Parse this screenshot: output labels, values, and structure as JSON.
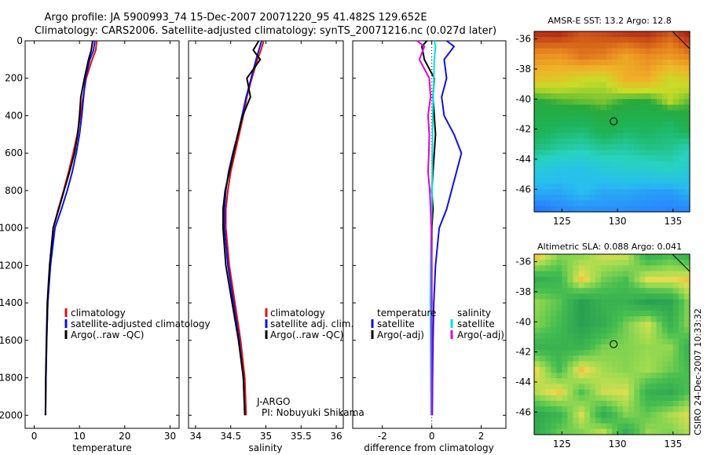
{
  "title_line1": "Argo profile: JA 5900993_74 15-Dec-2007 20071220_95 41.482S 129.652E",
  "title_line2": "Climatology: CARS2006. Satellite-adjusted climatology: synTS_20071216.nc (0.027d later)",
  "credit": "CSIRO 24-Dec-2007 10:33:32",
  "chart_data": [
    {
      "type": "line",
      "xlabel": "temperature",
      "xlim": [
        -2,
        32
      ],
      "ylim": [
        2070,
        0
      ],
      "yticks": [
        0,
        200,
        400,
        600,
        800,
        1000,
        1200,
        1400,
        1600,
        1800,
        2000
      ],
      "xticks": [
        0,
        10,
        20,
        30
      ],
      "legend": [
        "climatology",
        "satellite-adjusted climatology",
        "Argo(..raw -QC)"
      ],
      "series": [
        {
          "name": "climatology",
          "color": "#e01010",
          "x": [
            13.8,
            13.6,
            12.8,
            11.5,
            10.8,
            10.2,
            9.5,
            8.6,
            7.6,
            6.5,
            5.3,
            4.2,
            3.5,
            3.0,
            2.75,
            2.6,
            2.5
          ],
          "y": [
            0,
            50,
            100,
            200,
            300,
            400,
            500,
            600,
            700,
            800,
            900,
            1000,
            1200,
            1400,
            1600,
            1800,
            2000
          ]
        },
        {
          "name": "satellite-adjusted climatology",
          "color": "#1010e0",
          "x": [
            13.4,
            13.1,
            12.3,
            11.3,
            10.9,
            10.5,
            10.0,
            9.3,
            8.4,
            7.3,
            6.0,
            4.6,
            3.6,
            3.0,
            2.75,
            2.6,
            2.5
          ],
          "y": [
            0,
            50,
            100,
            200,
            300,
            400,
            500,
            600,
            700,
            800,
            900,
            1000,
            1200,
            1400,
            1600,
            1800,
            2000
          ]
        },
        {
          "name": "Argo(..raw -QC)",
          "color": "#000000",
          "x": [
            12.9,
            12.6,
            12.0,
            11.1,
            10.3,
            10.0,
            9.6,
            8.9,
            7.8,
            6.6,
            5.4,
            4.2,
            3.4,
            2.9,
            2.7,
            2.55,
            2.5
          ],
          "y": [
            0,
            50,
            100,
            200,
            300,
            400,
            500,
            600,
            700,
            800,
            900,
            1000,
            1200,
            1400,
            1600,
            1800,
            2000
          ]
        }
      ]
    },
    {
      "type": "line",
      "xlabel": "salinity",
      "xlim": [
        33.9,
        36.1
      ],
      "ylim": [
        2070,
        0
      ],
      "xticks": [
        34,
        34.5,
        35,
        35.5,
        36
      ],
      "legend": [
        "climatology",
        "satellite adj. clim.",
        "Argo(..raw -QC)"
      ],
      "annotation": [
        "J-ARGO",
        "PI: Nobuyuki Shikama"
      ],
      "series": [
        {
          "name": "climatology",
          "color": "#e01010",
          "x": [
            34.97,
            34.93,
            34.88,
            34.8,
            34.73,
            34.68,
            34.62,
            34.56,
            34.5,
            34.46,
            34.43,
            34.43,
            34.48,
            34.56,
            34.64,
            34.7,
            34.72
          ],
          "y": [
            0,
            50,
            100,
            200,
            300,
            400,
            500,
            600,
            700,
            800,
            900,
            1000,
            1200,
            1400,
            1600,
            1800,
            2000
          ]
        },
        {
          "name": "satellite adj. clim.",
          "color": "#1010e0",
          "x": [
            34.94,
            34.9,
            34.86,
            34.79,
            34.72,
            34.66,
            34.6,
            34.53,
            34.47,
            34.43,
            34.41,
            34.41,
            34.46,
            34.54,
            34.62,
            34.68,
            34.7
          ],
          "y": [
            0,
            50,
            100,
            200,
            300,
            400,
            500,
            600,
            700,
            800,
            900,
            1000,
            1200,
            1400,
            1600,
            1800,
            2000
          ]
        },
        {
          "name": "Argo(..raw -QC)",
          "color": "#000000",
          "x": [
            34.9,
            34.82,
            34.92,
            34.73,
            34.78,
            34.67,
            34.6,
            34.54,
            34.48,
            34.42,
            34.39,
            34.39,
            34.43,
            34.52,
            34.61,
            34.68,
            34.7
          ],
          "y": [
            0,
            50,
            100,
            200,
            300,
            400,
            500,
            600,
            700,
            800,
            900,
            1000,
            1200,
            1400,
            1600,
            1800,
            2000
          ]
        }
      ]
    },
    {
      "type": "line",
      "xlabel": "difference from climatology",
      "xlim": [
        -3.2,
        3.0
      ],
      "ylim": [
        2070,
        0
      ],
      "xticks": [
        -2,
        0,
        2
      ],
      "legend_left_title": "temperature",
      "legend_right_title": "salinity",
      "legend_left": [
        "satellite",
        "Argo(-adj)"
      ],
      "legend_right": [
        "satellite",
        "Argo(-adj)"
      ],
      "series": [
        {
          "name": "temperature satellite",
          "color": "#1010e0",
          "x": [
            0.6,
            0.9,
            0.5,
            0.6,
            0.4,
            0.5,
            0.9,
            1.2,
            1.0,
            0.8,
            0.6,
            0.3,
            0.15,
            0.08,
            0.05,
            0.03,
            0.02
          ],
          "y": [
            0,
            30,
            100,
            200,
            300,
            400,
            500,
            600,
            700,
            800,
            900,
            1000,
            1200,
            1400,
            1600,
            1800,
            2000
          ]
        },
        {
          "name": "temperature Argo(-adj)",
          "color": "#000000",
          "x": [
            -0.2,
            -0.4,
            -0.3,
            0.1,
            0.05,
            0.1,
            0.15,
            0.1,
            0.05,
            0.0,
            0.05,
            0.0,
            0.0,
            0.0,
            -0.02,
            0.0,
            0.0
          ],
          "y": [
            0,
            30,
            100,
            200,
            300,
            400,
            500,
            600,
            700,
            800,
            900,
            1000,
            1200,
            1400,
            1600,
            1800,
            2000
          ]
        },
        {
          "name": "salinity satellite",
          "color": "#00e0e0",
          "x": [
            0.1,
            0.15,
            0.1,
            0.08,
            0.06,
            0.04,
            0.03,
            0.02,
            0.02,
            0.01,
            0.0,
            -0.02,
            -0.05,
            -0.06,
            -0.05,
            -0.04,
            -0.03
          ],
          "y": [
            0,
            30,
            100,
            200,
            300,
            400,
            500,
            600,
            700,
            800,
            900,
            1000,
            1200,
            1400,
            1600,
            1800,
            2000
          ]
        },
        {
          "name": "salinity Argo(-adj)",
          "color": "#e000e0",
          "x": [
            -0.6,
            -0.3,
            -0.5,
            -0.1,
            -0.05,
            -0.15,
            -0.1,
            -0.12,
            -0.15,
            -0.08,
            -0.05,
            -0.02,
            0.0,
            0.0,
            0.0,
            0.0,
            0.0
          ],
          "y": [
            0,
            30,
            100,
            200,
            300,
            400,
            500,
            600,
            700,
            800,
            900,
            1000,
            1200,
            1400,
            1600,
            1800,
            2000
          ]
        }
      ]
    },
    {
      "type": "heatmap",
      "title": "AMSR-E SST: 13.2 Argo: 12.8",
      "xlim": [
        122.5,
        136.5
      ],
      "ylim": [
        -47.5,
        -35.5
      ],
      "xticks": [
        125,
        130,
        135
      ],
      "yticks": [
        -36,
        -38,
        -40,
        -42,
        -44,
        -46
      ],
      "marker": {
        "lon": 129.652,
        "lat": -41.482
      }
    },
    {
      "type": "heatmap",
      "title": "Altimetric SLA: 0.088 Argo: 0.041",
      "xlim": [
        122.5,
        136.5
      ],
      "ylim": [
        -47.5,
        -35.5
      ],
      "xticks": [
        125,
        130,
        135
      ],
      "yticks": [
        -36,
        -38,
        -40,
        -42,
        -44,
        -46
      ],
      "marker": {
        "lon": 129.652,
        "lat": -41.482
      }
    }
  ]
}
